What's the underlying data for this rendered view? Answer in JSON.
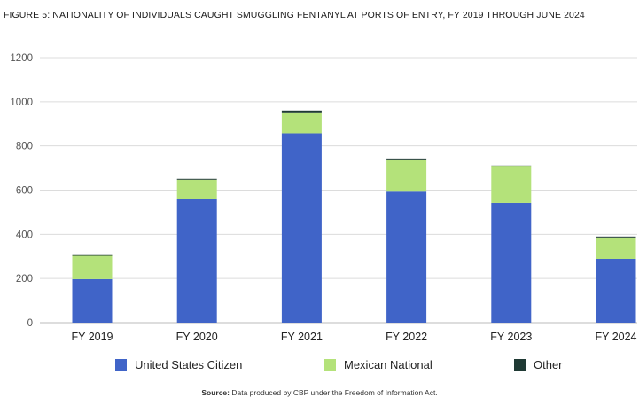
{
  "chart_data": {
    "type": "bar",
    "stacked": true,
    "title": "FIGURE 5: NATIONALITY OF INDIVIDUALS CAUGHT SMUGGLING FENTANYL AT PORTS OF ENTRY, FY 2019 THROUGH JUNE 2024",
    "categories": [
      "FY 2019",
      "FY 2020",
      "FY 2021",
      "FY 2022",
      "FY 2023",
      "FY 2024"
    ],
    "series": [
      {
        "name": "United States Citizen",
        "color": "#4064c8",
        "values": [
          197,
          560,
          857,
          593,
          542,
          289
        ]
      },
      {
        "name": "Mexican National",
        "color": "#b4e27a",
        "values": [
          106,
          87,
          95,
          146,
          168,
          97
        ]
      },
      {
        "name": "Other",
        "color": "#1f3a34",
        "values": [
          3,
          4,
          8,
          4,
          1,
          4
        ]
      }
    ],
    "ylim": [
      0,
      1200
    ],
    "yticks": [
      0,
      200,
      400,
      600,
      800,
      1000,
      1200
    ],
    "grid": true,
    "legend_position": "bottom"
  },
  "source": {
    "label": "Source:",
    "text": "Data produced by CBP under the Freedom of Information Act."
  }
}
